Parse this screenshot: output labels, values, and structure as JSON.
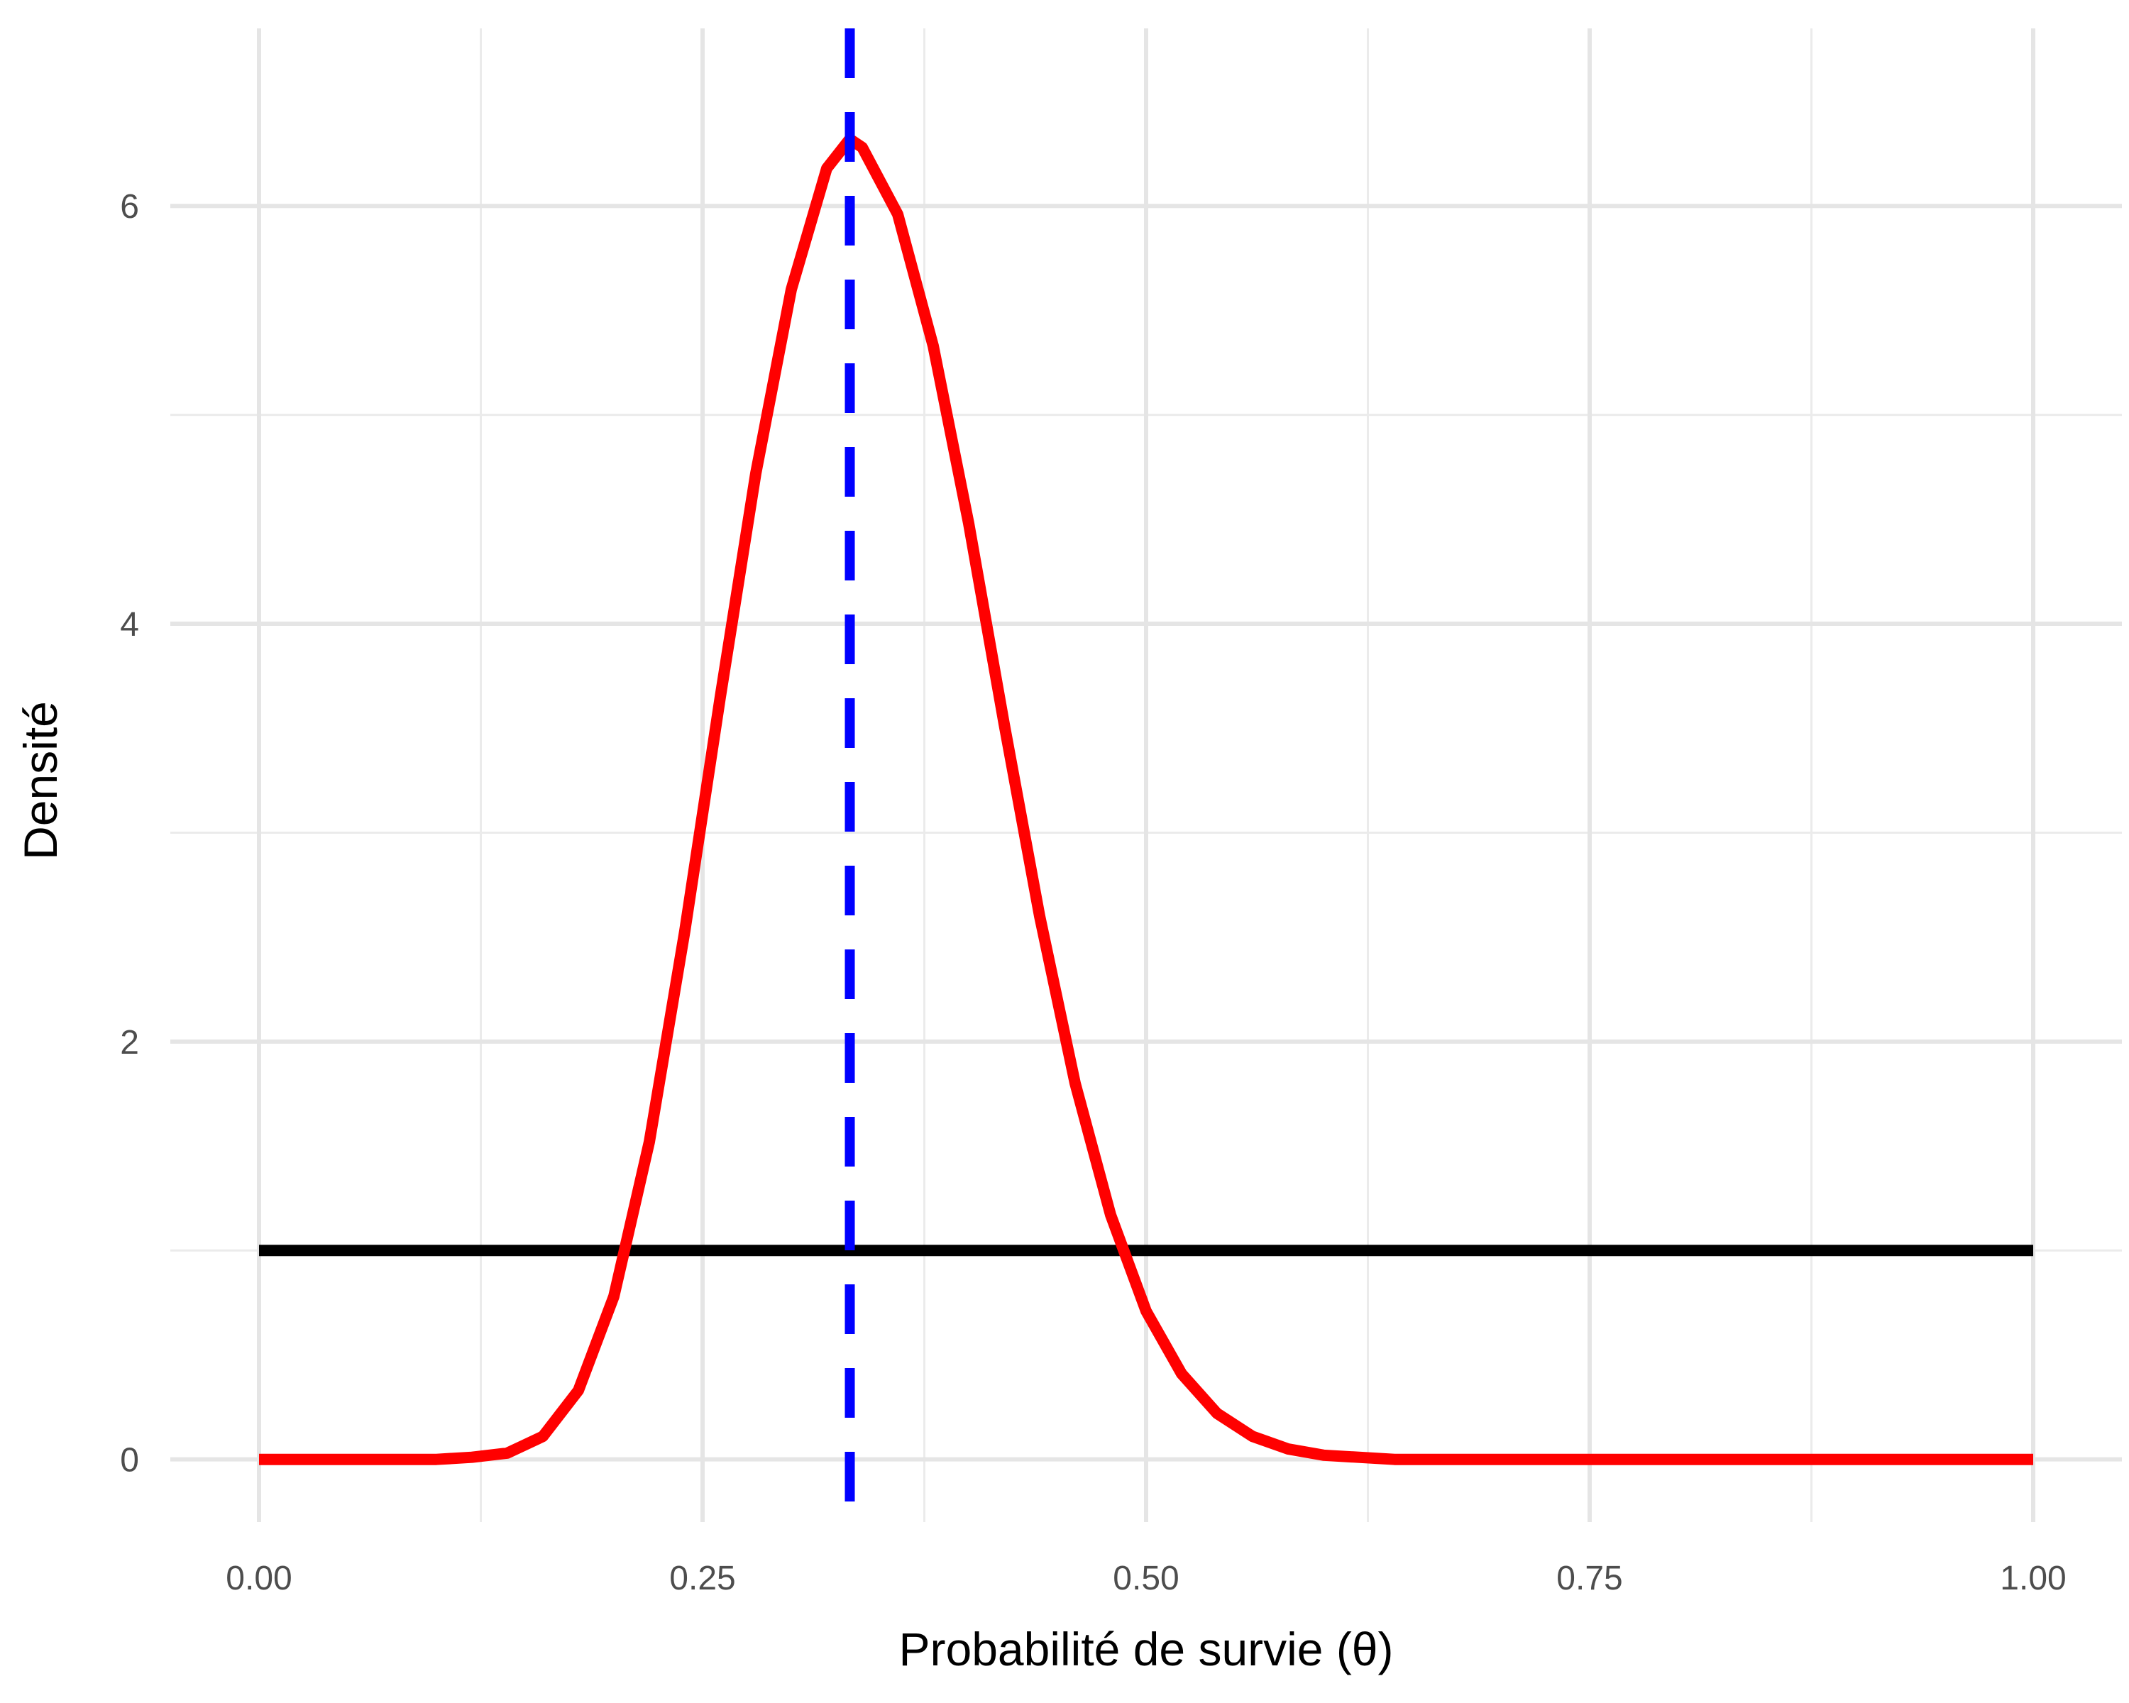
{
  "chart_data": {
    "type": "line",
    "title": "",
    "xlabel": "Probabilité de survie (θ)",
    "ylabel": "Densité",
    "xlim": [
      -0.05,
      1.05
    ],
    "ylim": [
      -0.3,
      6.85
    ],
    "x_ticks": [
      {
        "value": 0.0,
        "label": "0.00"
      },
      {
        "value": 0.25,
        "label": "0.25"
      },
      {
        "value": 0.5,
        "label": "0.50"
      },
      {
        "value": 0.75,
        "label": "0.75"
      },
      {
        "value": 1.0,
        "label": "1.00"
      }
    ],
    "x_minor_ticks": [
      0.125,
      0.375,
      0.625,
      0.875
    ],
    "y_ticks": [
      {
        "value": 0,
        "label": "0"
      },
      {
        "value": 2,
        "label": "2"
      },
      {
        "value": 4,
        "label": "4"
      },
      {
        "value": 6,
        "label": "6"
      }
    ],
    "y_minor_ticks": [
      1,
      3,
      5
    ],
    "grid": true,
    "legend": "none",
    "series": [
      {
        "color": "#000000",
        "style": "solid",
        "x": [
          0.0,
          1.0
        ],
        "y": [
          1.0,
          1.0
        ]
      },
      {
        "color": "#ff0000",
        "style": "solid",
        "x": [
          0.0,
          0.04,
          0.08,
          0.1,
          0.12,
          0.14,
          0.16,
          0.18,
          0.2,
          0.22,
          0.24,
          0.26,
          0.28,
          0.3,
          0.32,
          0.333,
          0.34,
          0.36,
          0.38,
          0.4,
          0.42,
          0.44,
          0.46,
          0.48,
          0.5,
          0.52,
          0.54,
          0.56,
          0.58,
          0.6,
          0.64,
          0.7,
          0.8,
          0.9,
          1.0
        ],
        "y": [
          0.0,
          0.0,
          0.0,
          0.0,
          0.01,
          0.03,
          0.11,
          0.33,
          0.78,
          1.52,
          2.53,
          3.65,
          4.72,
          5.6,
          6.18,
          6.32,
          6.28,
          5.96,
          5.33,
          4.48,
          3.52,
          2.6,
          1.8,
          1.17,
          0.71,
          0.41,
          0.22,
          0.11,
          0.05,
          0.02,
          0.0,
          0.0,
          0.0,
          0.0,
          0.0
        ]
      },
      {
        "color": "#0000ff",
        "style": "dashed",
        "vline_x": 0.333
      }
    ]
  }
}
